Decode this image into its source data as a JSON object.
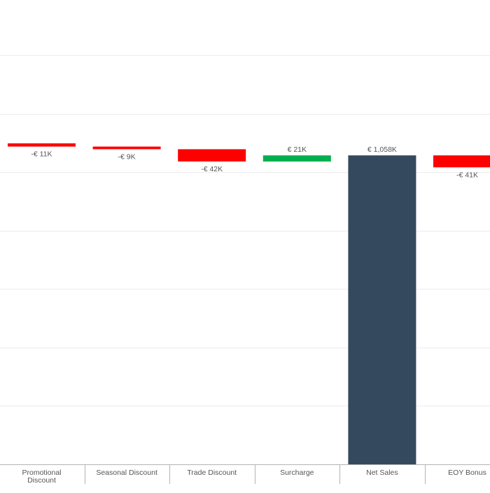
{
  "chart_data": {
    "type": "bar",
    "subtype": "waterfall",
    "categories": [
      "Promotional Discount",
      "Seasonal Discount",
      "Trade Discount",
      "Surcharge",
      "Net Sales",
      "EOY Bonus"
    ],
    "category_lines": [
      [
        "Promotional",
        "Discount"
      ],
      [
        "Seasonal Discount"
      ],
      [
        "Trade Discount"
      ],
      [
        "Surcharge"
      ],
      [
        "Net Sales"
      ],
      [
        "EOY Bonus"
      ]
    ],
    "values": [
      -11,
      -9,
      -42,
      21,
      1058,
      -41
    ],
    "value_labels": [
      "-€ 11K",
      "-€ 9K",
      "-€ 42K",
      "€ 21K",
      "€ 1,058K",
      "-€ 41K"
    ],
    "running_start": 1099,
    "kinds": [
      "decrease",
      "decrease",
      "decrease",
      "increase",
      "total",
      "decrease"
    ],
    "unit": "€ K",
    "ylim": [
      0,
      1590
    ],
    "grid": true,
    "legend": "none",
    "colors": {
      "decrease": "#fd0000",
      "increase": "#00b050",
      "total": "#34495e",
      "grid": "#ececec",
      "axis": "#b3b3b3",
      "label": "#555555"
    }
  }
}
